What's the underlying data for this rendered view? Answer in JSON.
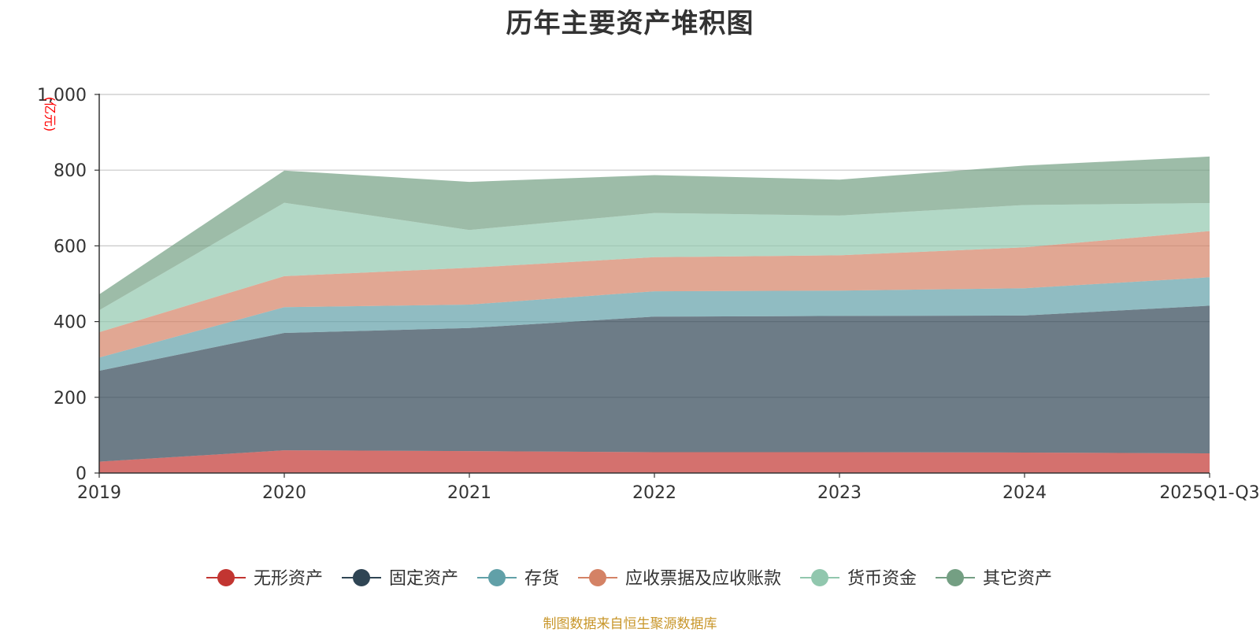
{
  "chart_data": {
    "type": "area",
    "stacked": true,
    "title": "历年主要资产堆积图",
    "unit": "(亿元)",
    "categories": [
      "2019",
      "2020",
      "2021",
      "2022",
      "2023",
      "2024",
      "2025Q1-Q3"
    ],
    "ylim": [
      0,
      1000
    ],
    "yticks": [
      {
        "value": 0,
        "label": "0"
      },
      {
        "value": 200,
        "label": "200"
      },
      {
        "value": 400,
        "label": "400"
      },
      {
        "value": 600,
        "label": "600"
      },
      {
        "value": 800,
        "label": "800"
      },
      {
        "value": 1000,
        "label": "1,000"
      }
    ],
    "series": [
      {
        "name": "无形资产",
        "color": "#c23531",
        "values": [
          30,
          60,
          58,
          55,
          55,
          54,
          52
        ]
      },
      {
        "name": "固定资产",
        "color": "#2f4554",
        "values": [
          240,
          310,
          325,
          358,
          360,
          362,
          390
        ]
      },
      {
        "name": "存货",
        "color": "#61a0a8",
        "values": [
          35,
          68,
          62,
          67,
          67,
          72,
          75
        ]
      },
      {
        "name": "应收票据及应收账款",
        "color": "#d48265",
        "values": [
          67,
          82,
          97,
          90,
          93,
          108,
          122
        ]
      },
      {
        "name": "货币资金",
        "color": "#91c7ae",
        "values": [
          58,
          194,
          100,
          117,
          105,
          112,
          74
        ]
      },
      {
        "name": "其它资产",
        "color": "#749f83",
        "values": [
          42,
          85,
          127,
          100,
          95,
          104,
          123
        ]
      }
    ],
    "legend_position": "bottom-center",
    "grid": true
  },
  "footer": {
    "source": "制图数据来自恒生聚源数据库"
  }
}
